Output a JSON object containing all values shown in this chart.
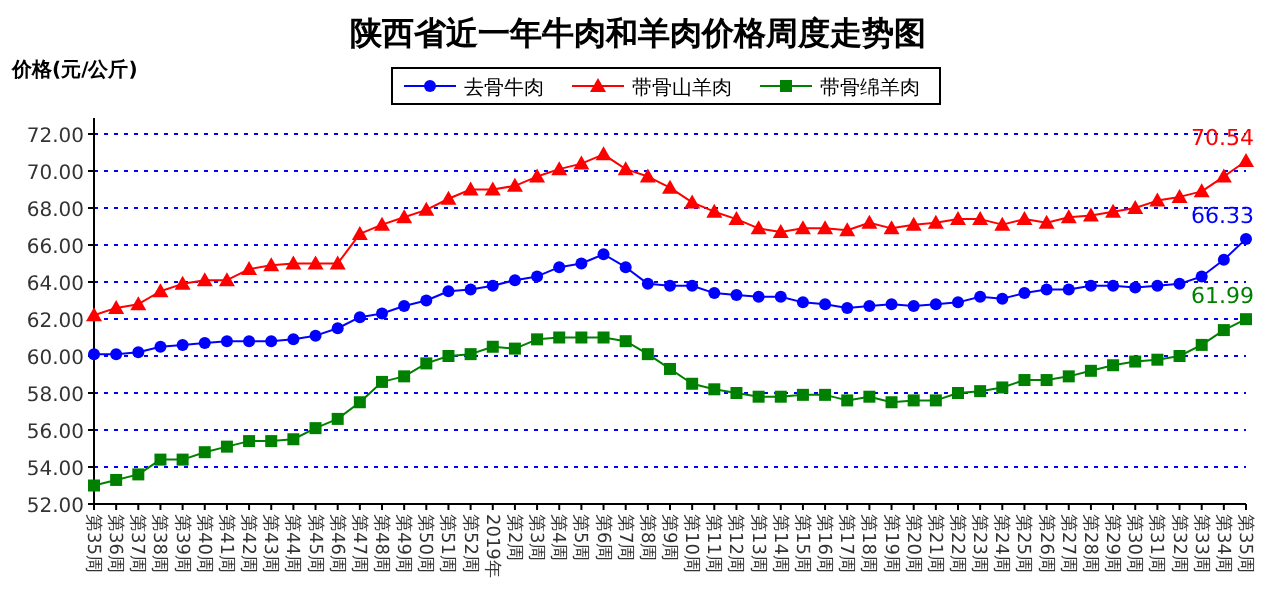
{
  "chart_data": {
    "type": "line",
    "title": "陕西省近一年牛肉和羊肉价格周度走势图",
    "ylabel": "价格(元/公斤)",
    "categories": [
      "第35周",
      "第36周",
      "第37周",
      "第38周",
      "第39周",
      "第40周",
      "第41周",
      "第42周",
      "第43周",
      "第44周",
      "第45周",
      "第46周",
      "第47周",
      "第48周",
      "第49周",
      "第50周",
      "第51周",
      "第52周",
      "2019年",
      "第2周",
      "第3周",
      "第4周",
      "第5周",
      "第6周",
      "第7周",
      "第8周",
      "第9周",
      "第10周",
      "第11周",
      "第12周",
      "第13周",
      "第14周",
      "第15周",
      "第16周",
      "第17周",
      "第18周",
      "第19周",
      "第20周",
      "第21周",
      "第22周",
      "第23周",
      "第24周",
      "第25周",
      "第26周",
      "第27周",
      "第28周",
      "第29周",
      "第30周",
      "第31周",
      "第32周",
      "第33周",
      "第34周",
      "第35周"
    ],
    "series": [
      {
        "name": "去骨牛肉",
        "color": "#0000ff",
        "marker": "circle",
        "values": [
          60.1,
          60.1,
          60.2,
          60.5,
          60.6,
          60.7,
          60.8,
          60.8,
          60.8,
          60.9,
          61.1,
          61.5,
          62.1,
          62.3,
          62.7,
          63.0,
          63.5,
          63.6,
          63.8,
          64.1,
          64.3,
          64.8,
          65.0,
          65.5,
          64.8,
          63.9,
          63.8,
          63.8,
          63.4,
          63.3,
          63.2,
          63.2,
          62.9,
          62.8,
          62.6,
          62.7,
          62.8,
          62.7,
          62.8,
          62.9,
          63.2,
          63.1,
          63.4,
          63.6,
          63.6,
          63.8,
          63.8,
          63.7,
          63.8,
          63.9,
          64.3,
          65.2,
          66.33
        ],
        "value_labels": [
          null,
          null,
          null,
          null,
          null,
          null,
          null,
          null,
          null,
          null,
          null,
          null,
          null,
          null,
          null,
          null,
          null,
          null,
          null,
          null,
          null,
          null,
          null,
          null,
          null,
          null,
          null,
          null,
          null,
          null,
          null,
          null,
          null,
          null,
          null,
          null,
          null,
          null,
          null,
          null,
          null,
          null,
          null,
          null,
          null,
          null,
          null,
          null,
          null,
          null,
          null,
          null,
          "66.33"
        ]
      },
      {
        "name": "带骨山羊肉",
        "color": "#ff0000",
        "marker": "triangle",
        "values": [
          62.2,
          62.6,
          62.8,
          63.5,
          63.9,
          64.1,
          64.1,
          64.7,
          64.9,
          65.0,
          65.0,
          65.0,
          66.6,
          67.1,
          67.5,
          67.9,
          68.5,
          69.0,
          69.0,
          69.2,
          69.7,
          70.1,
          70.4,
          70.9,
          70.1,
          69.7,
          69.1,
          68.3,
          67.8,
          67.4,
          66.9,
          66.7,
          66.9,
          66.9,
          66.8,
          67.2,
          66.9,
          67.1,
          67.2,
          67.4,
          67.4,
          67.1,
          67.4,
          67.2,
          67.5,
          67.6,
          67.8,
          68.0,
          68.4,
          68.6,
          68.9,
          69.7,
          70.54
        ],
        "value_labels": [
          null,
          null,
          null,
          null,
          null,
          null,
          null,
          null,
          null,
          null,
          null,
          null,
          null,
          null,
          null,
          null,
          null,
          null,
          null,
          null,
          null,
          null,
          null,
          null,
          null,
          null,
          null,
          null,
          null,
          null,
          null,
          null,
          null,
          null,
          null,
          null,
          null,
          null,
          null,
          null,
          null,
          null,
          null,
          null,
          null,
          null,
          null,
          null,
          null,
          null,
          null,
          null,
          "70.54"
        ]
      },
      {
        "name": "带骨绵羊肉",
        "color": "#008000",
        "marker": "square",
        "values": [
          53.0,
          53.3,
          53.6,
          54.4,
          54.4,
          54.8,
          55.1,
          55.4,
          55.4,
          55.5,
          56.1,
          56.6,
          57.5,
          58.6,
          58.9,
          59.6,
          60.0,
          60.1,
          60.5,
          60.4,
          60.9,
          61.0,
          61.0,
          61.0,
          60.8,
          60.1,
          59.3,
          58.5,
          58.2,
          58.0,
          57.8,
          57.8,
          57.9,
          57.9,
          57.6,
          57.8,
          57.5,
          57.6,
          57.6,
          58.0,
          58.1,
          58.3,
          58.7,
          58.7,
          58.9,
          59.2,
          59.5,
          59.7,
          59.8,
          60.0,
          60.6,
          61.4,
          61.99
        ],
        "value_labels": [
          null,
          null,
          null,
          null,
          null,
          null,
          null,
          null,
          null,
          null,
          null,
          null,
          null,
          null,
          null,
          null,
          null,
          null,
          null,
          null,
          null,
          null,
          null,
          null,
          null,
          null,
          null,
          null,
          null,
          null,
          null,
          null,
          null,
          null,
          null,
          null,
          null,
          null,
          null,
          null,
          null,
          null,
          null,
          null,
          null,
          null,
          null,
          null,
          null,
          null,
          null,
          null,
          "61.99"
        ]
      }
    ],
    "ylim": [
      52,
      72
    ],
    "yticks": [
      {
        "value": 52,
        "label": "52.00"
      },
      {
        "value": 54,
        "label": "54.00"
      },
      {
        "value": 56,
        "label": "56.00"
      },
      {
        "value": 58,
        "label": "58.00"
      },
      {
        "value": 60,
        "label": "60.00"
      },
      {
        "value": 62,
        "label": "62.00"
      },
      {
        "value": 64,
        "label": "64.00"
      },
      {
        "value": 66,
        "label": "66.00"
      },
      {
        "value": 68,
        "label": "68.00"
      },
      {
        "value": 70,
        "label": "70.00"
      },
      {
        "value": 72,
        "label": "72.00"
      }
    ],
    "grid": "y",
    "legend": "top",
    "line_style": "solid"
  }
}
